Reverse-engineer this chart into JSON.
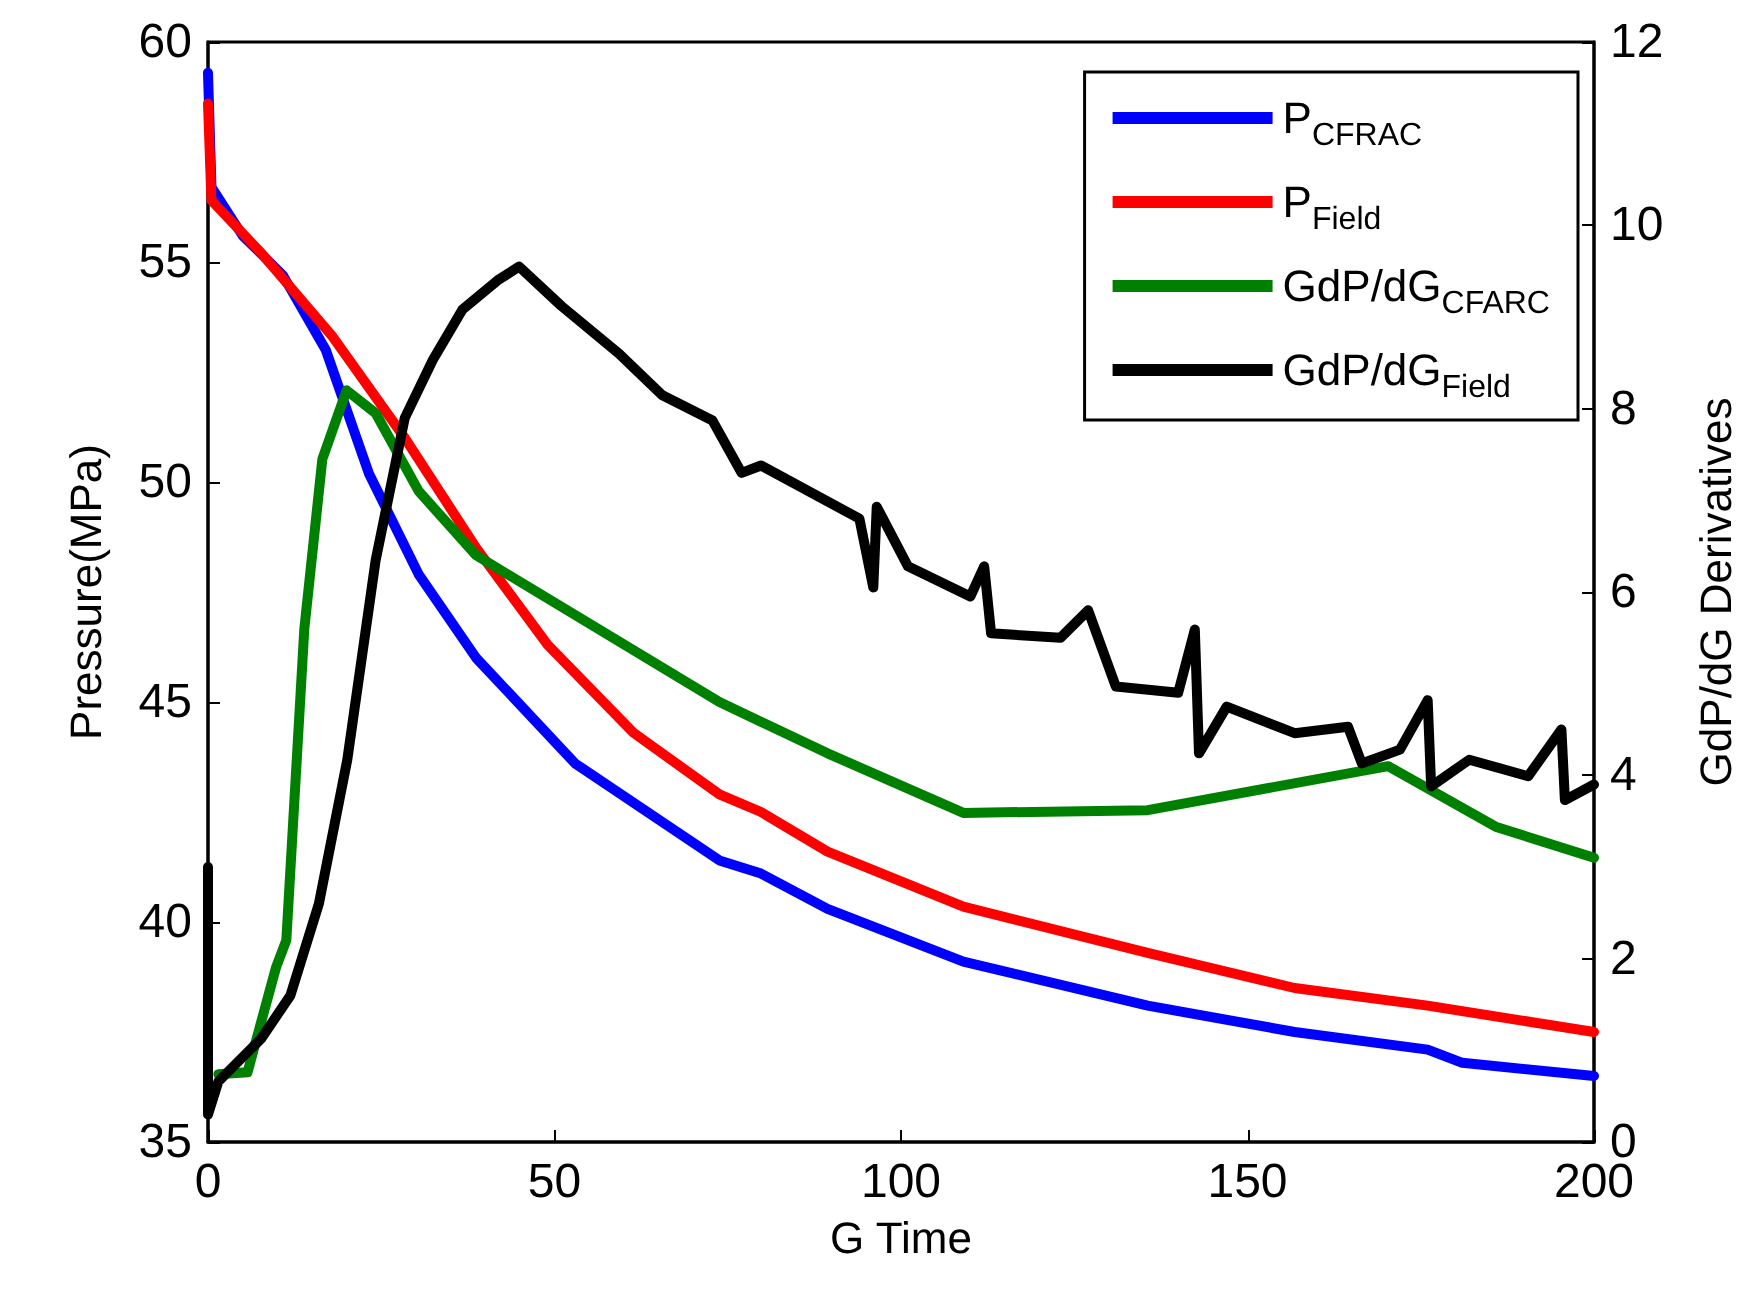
{
  "chart_data": {
    "type": "line",
    "xlabel": "G Time",
    "ylabel": "Pressure(MPa)",
    "y2label": "GdP/dG Derivatives",
    "xlim": [
      0,
      200
    ],
    "xticks": [
      0,
      50,
      100,
      150,
      200
    ],
    "ylim": [
      35,
      60
    ],
    "yticks": [
      35,
      40,
      45,
      50,
      55,
      60
    ],
    "y2lim": [
      0,
      12
    ],
    "y2ticks": [
      0,
      2,
      4,
      6,
      8,
      10,
      12
    ],
    "grid": false,
    "legend": "top right",
    "marker": "none",
    "line_style": "solid",
    "series": [
      {
        "name": "P$_{CFRAC}$",
        "color": "#0000ff",
        "x": [
          0,
          0.5,
          5,
          10.8,
          17,
          23.2,
          30.4,
          38.7,
          53,
          73.8,
          79.8,
          89.4,
          109,
          135.6,
          156.8,
          176,
          181,
          200
        ],
        "values": [
          59.3,
          56.7,
          55.6,
          54.7,
          53.0,
          50.2,
          47.9,
          46.0,
          43.6,
          41.4,
          41.1,
          40.3,
          39.1,
          38.1,
          37.5,
          37.1,
          36.8,
          36.5
        ]
      },
      {
        "name": "P$_{Field}$",
        "color": "#ff0000",
        "x": [
          0,
          0.5,
          7.7,
          18,
          28.4,
          38.7,
          49,
          61.4,
          73.8,
          79.8,
          89.4,
          109,
          135.6,
          156.8,
          176,
          200
        ],
        "values": [
          58.6,
          56.4,
          55.2,
          53.3,
          51.0,
          48.5,
          46.3,
          44.3,
          42.9,
          42.5,
          41.6,
          40.35,
          39.3,
          38.5,
          38.1,
          37.5
        ]
      },
      {
        "name": "GdP/dG$_{CFARC}$",
        "color": "#008000",
        "axis": "y2",
        "x": [
          1.5,
          5.7,
          9.8,
          11.3,
          13.9,
          16.5,
          20,
          24.2,
          30.4,
          38.7,
          73.8,
          89.4,
          109,
          135.6,
          170.3,
          185.8,
          200
        ],
        "values": [
          0.74,
          0.76,
          1.9,
          2.2,
          5.6,
          7.45,
          8.2,
          7.95,
          7.1,
          6.4,
          4.8,
          4.24,
          3.59,
          3.62,
          4.1,
          3.44,
          3.1
        ]
      },
      {
        "name": "GdP/dG$_{Field}$",
        "color": "#000000",
        "axis": "y2",
        "x": [
          0,
          0,
          1.5,
          7.7,
          11.9,
          16,
          20.1,
          24.2,
          28.4,
          32.5,
          36.7,
          41.8,
          44.9,
          51,
          59.3,
          65.5,
          72.8,
          77,
          79.8,
          94,
          96,
          96.5,
          101,
          110,
          112,
          113,
          123,
          127,
          131,
          140,
          142.4,
          143,
          147,
          156.8,
          164.5,
          166.5,
          172,
          176,
          176.5,
          182,
          190.5,
          195.3,
          195.8,
          200
        ],
        "values": [
          3.0,
          0.3,
          0.66,
          1.13,
          1.6,
          2.6,
          4.17,
          6.35,
          7.9,
          8.54,
          9.08,
          9.4,
          9.55,
          9.12,
          8.6,
          8.15,
          7.87,
          7.3,
          7.38,
          6.8,
          6.05,
          6.93,
          6.28,
          5.95,
          6.28,
          5.55,
          5.5,
          5.8,
          4.97,
          4.9,
          5.59,
          4.24,
          4.75,
          4.46,
          4.53,
          4.13,
          4.28,
          4.82,
          3.88,
          4.17,
          3.99,
          4.5,
          3.73,
          3.9
        ]
      }
    ]
  }
}
